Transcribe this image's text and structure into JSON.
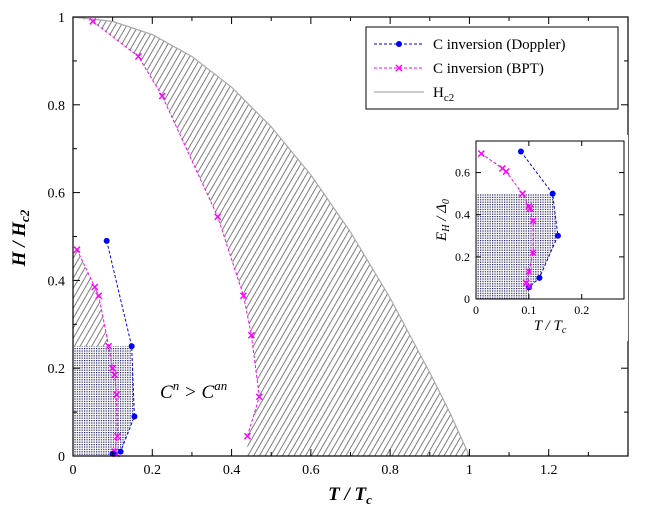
{
  "chart_data": [
    {
      "type": "line",
      "xlabel": "T / T",
      "xlabel_sub": "c",
      "ylabel": "H / H",
      "ylabel_sub": "c2",
      "xlim": [
        0,
        1.4
      ],
      "ylim": [
        0,
        1.0
      ],
      "xticks": [
        "0",
        "0.2",
        "0.4",
        "0.6",
        "0.8",
        "1",
        "1.2"
      ],
      "yticks": [
        "0",
        "0.2",
        "0.4",
        "0.6",
        "0.8",
        "1"
      ],
      "grid": false,
      "legend_position": "top-right",
      "annotation": {
        "parts": [
          "C",
          "n",
          " > C",
          "an"
        ],
        "x": 0.22,
        "y": 0.15
      },
      "series": [
        {
          "name": "C inversion (Doppler)",
          "color": "#0000ff",
          "marker": "circle",
          "segments": [
            [
              [
                0.085,
                0.49
              ],
              [
                0.148,
                0.25
              ],
              [
                0.155,
                0.09
              ],
              [
                0.12,
                0.01
              ],
              [
                0.1,
                0.005
              ]
            ]
          ]
        },
        {
          "name": "C inversion (BPT)",
          "color": "#ff00ff",
          "marker": "x",
          "segments": [
            [
              [
                0.05,
                0.99
              ],
              [
                0.165,
                0.91
              ],
              [
                0.225,
                0.82
              ],
              [
                0.365,
                0.545
              ],
              [
                0.43,
                0.365
              ],
              [
                0.45,
                0.275
              ],
              [
                0.47,
                0.135
              ],
              [
                0.44,
                0.045
              ]
            ],
            [
              [
                0.01,
                0.47
              ],
              [
                0.055,
                0.385
              ],
              [
                0.065,
                0.365
              ],
              [
                0.09,
                0.25
              ],
              [
                0.1,
                0.2
              ],
              [
                0.105,
                0.185
              ],
              [
                0.11,
                0.14
              ],
              [
                0.112,
                0.045
              ],
              [
                0.105,
                0.01
              ],
              [
                0.11,
                0.005
              ]
            ]
          ]
        },
        {
          "name": "H",
          "name_sub": "c2",
          "color": "#aaaaaa",
          "marker": "none",
          "x": [
            0,
            0.1,
            0.2,
            0.3,
            0.4,
            0.5,
            0.6,
            0.7,
            0.8,
            0.9,
            0.95,
            1.0
          ],
          "y": [
            1.0,
            0.99,
            0.96,
            0.91,
            0.84,
            0.75,
            0.64,
            0.51,
            0.36,
            0.19,
            0.1,
            0.0
          ]
        }
      ],
      "shaded_regions": [
        {
          "kind": "hatch",
          "boundary": "between BPT curve and Hc2 curve"
        },
        {
          "kind": "hatch",
          "boundary": "below small BPT curve"
        },
        {
          "kind": "dots",
          "x": [
            0,
            0.085
          ],
          "y": [
            0,
            0.25
          ],
          "boundary": "clipped by Doppler curve"
        }
      ]
    },
    {
      "type": "line",
      "inset": true,
      "xlabel": "T / T",
      "xlabel_sub": "c",
      "ylabel": "E  / Δ",
      "ylabel_sub_1": "H",
      "ylabel_sub_2": "0",
      "xlim": [
        0,
        0.28
      ],
      "ylim": [
        0,
        0.75
      ],
      "xticks": [
        "0",
        "0.1",
        "0.2"
      ],
      "yticks": [
        "0",
        "0.2",
        "0.4",
        "0.6"
      ],
      "series": [
        {
          "name": "C inversion (Doppler)",
          "color": "#0000ff",
          "marker": "circle",
          "points": [
            [
              0.085,
              0.7
            ],
            [
              0.145,
              0.5
            ],
            [
              0.155,
              0.3
            ],
            [
              0.12,
              0.1
            ],
            [
              0.1,
              0.055
            ]
          ]
        },
        {
          "name": "C inversion (BPT)",
          "color": "#ff00ff",
          "marker": "x",
          "points": [
            [
              0.01,
              0.69
            ],
            [
              0.05,
              0.62
            ],
            [
              0.057,
              0.605
            ],
            [
              0.088,
              0.5
            ],
            [
              0.1,
              0.44
            ],
            [
              0.102,
              0.43
            ],
            [
              0.108,
              0.37
            ],
            [
              0.108,
              0.22
            ],
            [
              0.1,
              0.13
            ],
            [
              0.095,
              0.075
            ],
            [
              0.1,
              0.06
            ]
          ]
        }
      ],
      "shaded_regions": [
        {
          "kind": "dots",
          "x": [
            0,
            0.145
          ],
          "y": [
            0,
            0.5
          ],
          "boundary": "clipped by Doppler curve"
        }
      ]
    }
  ]
}
